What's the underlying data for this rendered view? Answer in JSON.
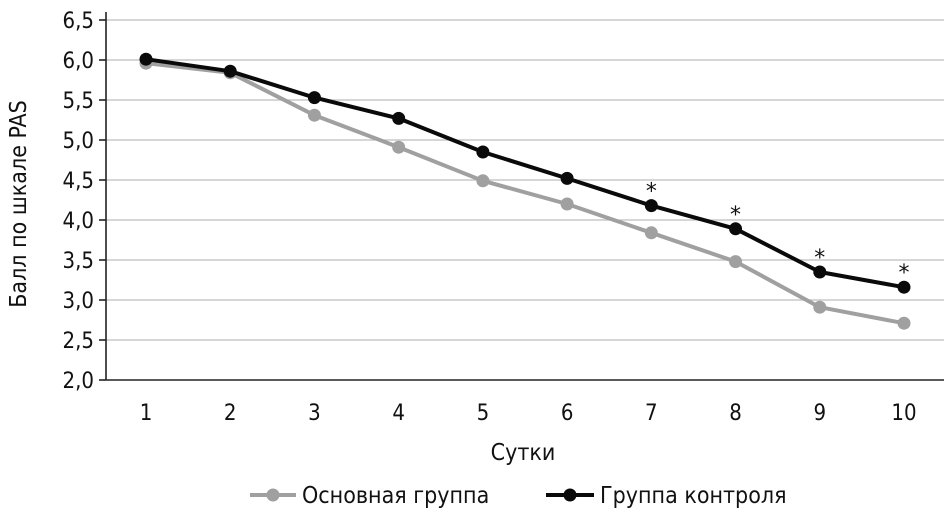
{
  "chart_data": {
    "type": "line",
    "title": "",
    "xlabel": "Сутки",
    "ylabel": "Балл по шкале PAS",
    "categories": [
      "1",
      "2",
      "3",
      "4",
      "5",
      "6",
      "7",
      "8",
      "9",
      "10"
    ],
    "y_ticks": [
      "2,0",
      "2,5",
      "3,0",
      "3,5",
      "4,0",
      "4,5",
      "5,0",
      "5,5",
      "6,0",
      "6,5"
    ],
    "ylim": [
      2.0,
      6.5
    ],
    "grid": "horizontal",
    "legend_position": "bottom",
    "series": [
      {
        "name": "Основная группа",
        "color": "#a0a0a0",
        "values": [
          5.96,
          5.84,
          5.31,
          4.91,
          4.49,
          4.2,
          3.84,
          3.48,
          2.91,
          2.71
        ]
      },
      {
        "name": "Группа контроля",
        "color": "#0a0a0a",
        "values": [
          6.01,
          5.86,
          5.53,
          5.27,
          4.85,
          4.52,
          4.18,
          3.89,
          3.35,
          3.16
        ]
      }
    ],
    "annotations": [
      {
        "category": "7",
        "text": "*"
      },
      {
        "category": "8",
        "text": "*"
      },
      {
        "category": "9",
        "text": "*"
      },
      {
        "category": "10",
        "text": "*"
      }
    ]
  }
}
